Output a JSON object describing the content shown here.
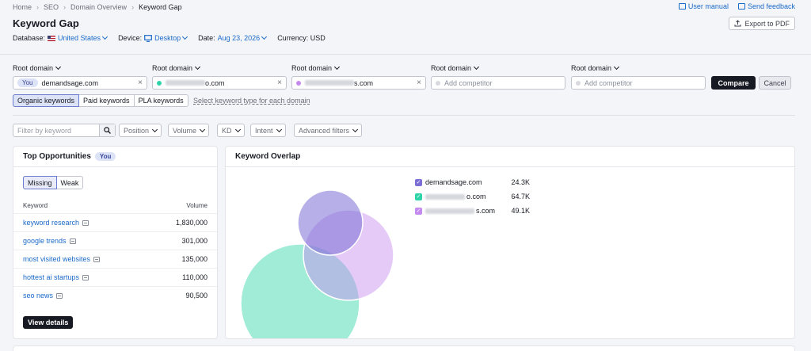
{
  "breadcrumb": [
    "Home",
    "SEO",
    "Domain Overview",
    "Keyword Gap"
  ],
  "page_title": "Keyword Gap",
  "meta": {
    "database_label": "Database:",
    "database_value": "United States",
    "device_label": "Device:",
    "device_value": "Desktop",
    "date_label": "Date:",
    "date_value": "Aug 23, 2026",
    "currency": "Currency: USD"
  },
  "top_links": {
    "user_manual": "User manual",
    "send_feedback": "Send feedback"
  },
  "export_label": "Export to PDF",
  "domains": [
    {
      "label": "Root domain",
      "value": "demandsage.com",
      "badge": "You",
      "color": ""
    },
    {
      "label": "Root domain",
      "value": "o.com",
      "color": "#2dd4a7"
    },
    {
      "label": "Root domain",
      "value": "s.com",
      "color": "#c58af0"
    },
    {
      "label": "Root domain",
      "placeholder": "Add competitor",
      "color": "#d7d9de"
    },
    {
      "label": "Root domain",
      "placeholder": "Add competitor",
      "color": "#d7d9de"
    }
  ],
  "compare_label": "Compare",
  "cancel_label": "Cancel",
  "keyword_types": [
    "Organic keywords",
    "Paid keywords",
    "PLA keywords"
  ],
  "keyword_type_link": "Select keyword type for each domain",
  "filters": {
    "search_placeholder": "Filter by keyword",
    "dropdowns": [
      "Position",
      "Volume",
      "KD",
      "Intent",
      "Advanced filters"
    ]
  },
  "opportunities": {
    "title": "Top Opportunities",
    "badge": "You",
    "toggle": [
      "Missing",
      "Weak"
    ],
    "columns": [
      "Keyword",
      "Volume"
    ],
    "rows": [
      {
        "keyword": "keyword research",
        "volume": "1,830,000"
      },
      {
        "keyword": "google trends",
        "volume": "301,000"
      },
      {
        "keyword": "most visited websites",
        "volume": "135,000"
      },
      {
        "keyword": "hottest ai startups",
        "volume": "110,000"
      },
      {
        "keyword": "seo news",
        "volume": "90,500"
      }
    ],
    "view_details": "View details"
  },
  "overlap": {
    "title": "Keyword Overlap",
    "legend": [
      {
        "name": "demandsage.com",
        "value": "24.3K",
        "color": "#7b6fd6"
      },
      {
        "name": "o.com",
        "value": "64.7K",
        "color": "#2dd4a7"
      },
      {
        "name": "s.com",
        "value": "49.1K",
        "color": "#c58af0"
      }
    ]
  }
}
